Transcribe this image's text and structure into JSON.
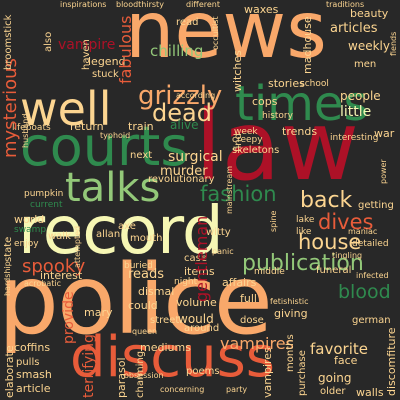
{
  "background_color": "#282828",
  "palette": {
    "peach": "#f9a86a",
    "cream": "#f6f7b4",
    "red": "#ad1127",
    "green": "#2f8a4e",
    "light_green": "#93c879",
    "orange": "#e85c3a",
    "sand": "#fcd591"
  },
  "words": {
    "news": "news",
    "police": "police",
    "law": "law",
    "record": "record",
    "courts": "courts",
    "discuss": "discuss",
    "times": "times",
    "well": "well",
    "talks": "talks",
    "grizzly": "grizzly",
    "dead": "dead",
    "fashion": "fashion",
    "house": "house",
    "back": "back",
    "dives": "dives",
    "spooky": "spooky",
    "publication": "publication",
    "blood": "blood",
    "vampires": "vampires",
    "favorite": "favorite",
    "chilling": "chilling",
    "surgical": "surgical",
    "murder": "murder",
    "articles": "articles",
    "weekly": "weekly",
    "people": "people",
    "little": "little",
    "vampire": "vampire",
    "stories": "stories",
    "cops": "cops",
    "alive": "alive",
    "trends": "trends",
    "return": "return",
    "train": "train",
    "lifeboats": "lifeboats",
    "skeletons": "skeletons",
    "revolutionary": "revolutionary",
    "getting": "getting",
    "detailed": "detailed",
    "world": "world",
    "state": "state",
    "walk": "walk",
    "allan": "allan",
    "swamp": "swamp",
    "enjoy": "enjoy",
    "pumpkin": "pumpkin",
    "interest": "interest",
    "mary": "mary",
    "reads": "reads",
    "items": "items",
    "volume": "volume",
    "would": "would",
    "dismal": "dismal",
    "could": "could",
    "buried": "buried",
    "mouth": "mouth",
    "witty": "witty",
    "night": "night",
    "case": "case",
    "full": "full",
    "affairs": "affairs",
    "middle": "middle",
    "funeral": "funeral",
    "giving": "giving",
    "dose": "dose",
    "german": "german",
    "street": "street",
    "around": "around",
    "mediums": "mediums",
    "face": "face",
    "going": "going",
    "older": "older",
    "walls": "walls",
    "coffins": "coffins",
    "smash": "smash",
    "pulls": "pulls",
    "article": "article",
    "poems": "poems",
    "elaborate": "elaborate",
    "provide": "provide",
    "terrifying": "terrifying",
    "parasol": "parasol",
    "charming": "charming",
    "next": "next",
    "axe": "axe",
    "lake": "lake",
    "like": "like",
    "legend": "legend",
    "stuck": "stuck",
    "read": "read",
    "school": "school",
    "men": "men",
    "beauty": "beauty",
    "waxes": "waxes",
    "inspirations": "inspirations",
    "bloodthirsty": "bloodthirsty",
    "different": "different",
    "traditions": "traditions",
    "war": "war",
    "broomstick": "broomstick",
    "mysterious": "mysterious",
    "also": "also",
    "fabulous": "fabulous",
    "madhouse": "madhouse",
    "creepy": "creepy",
    "week": "week",
    "interesting": "interesting",
    "history": "history",
    "infected": "infected",
    "witches": "witches",
    "haven": "haven",
    "gentleman": "gentleman",
    "months": "months",
    "current": "current",
    "find": "find",
    "spine": "spine",
    "attempted": "attempted",
    "acrobatic": "acrobatic",
    "hardship": "hardship",
    "queen": "queen",
    "mainstream": "mainstream",
    "panic": "panic",
    "husband": "husband",
    "typhoid": "typhoid",
    "according": "according",
    "discomfiture": "discomfiture",
    "purchase": "purchase",
    "fetishistic": "fetishistic",
    "obsession": "obsession",
    "concerning": "concerning",
    "party": "party",
    "tingling": "tingling",
    "maniac": "maniac",
    "power": "power",
    "fiends": "fiends",
    "occultist": "occultist"
  }
}
